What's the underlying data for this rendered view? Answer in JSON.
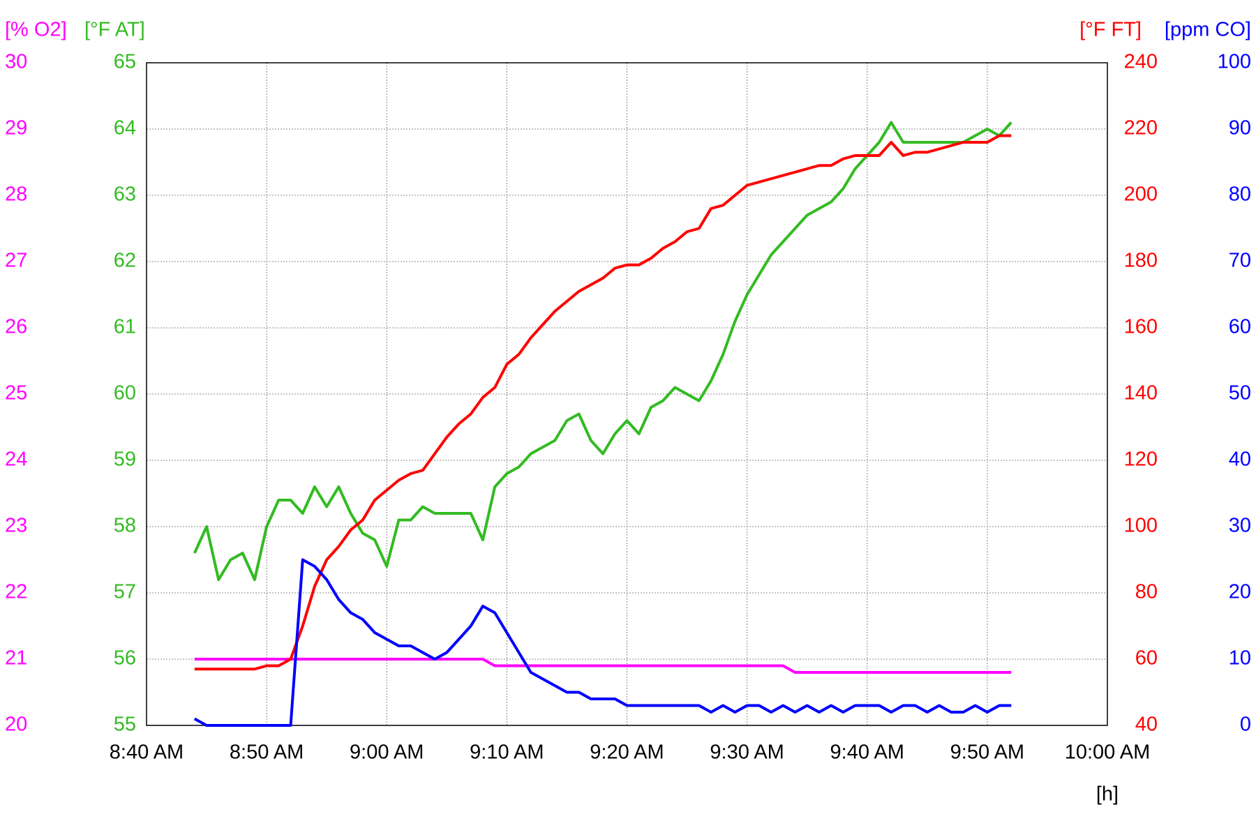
{
  "chart_data": {
    "type": "line",
    "grid": true,
    "xlabel": "[h]",
    "x": [
      524,
      525,
      526,
      527,
      528,
      529,
      530,
      531,
      532,
      533,
      534,
      535,
      536,
      537,
      538,
      539,
      540,
      541,
      542,
      543,
      544,
      545,
      546,
      547,
      548,
      549,
      550,
      551,
      552,
      553,
      554,
      555,
      556,
      557,
      558,
      559,
      560,
      561,
      562,
      563,
      564,
      565,
      566,
      567,
      568,
      569,
      570,
      571,
      572,
      573,
      574,
      575,
      576,
      577,
      578,
      579,
      580,
      581,
      582,
      583,
      584,
      585,
      586,
      587,
      588,
      589,
      590,
      591,
      592
    ],
    "xlim": [
      520,
      600
    ],
    "xticks": [
      {
        "value": 520,
        "label": "8:40 AM"
      },
      {
        "value": 530,
        "label": "8:50 AM"
      },
      {
        "value": 540,
        "label": "9:00 AM"
      },
      {
        "value": 550,
        "label": "9:10 AM"
      },
      {
        "value": 560,
        "label": "9:20 AM"
      },
      {
        "value": 570,
        "label": "9:30 AM"
      },
      {
        "value": 580,
        "label": "9:40 AM"
      },
      {
        "value": 590,
        "label": "9:50 AM"
      },
      {
        "value": 600,
        "label": "10:00 AM"
      }
    ],
    "axes": [
      {
        "label": "[% O2]",
        "side": "left",
        "color": "#ff00ff",
        "lim": [
          20,
          30
        ],
        "ticks": [
          20,
          21,
          22,
          23,
          24,
          25,
          26,
          27,
          28,
          29,
          30
        ]
      },
      {
        "label": "[°F AT]",
        "side": "left",
        "color": "#33bb22",
        "lim": [
          55,
          65
        ],
        "ticks": [
          55,
          56,
          57,
          58,
          59,
          60,
          61,
          62,
          63,
          64,
          65
        ]
      },
      {
        "label": "[°F FT]",
        "side": "right",
        "color": "#ff0000",
        "lim": [
          40,
          240
        ],
        "ticks": [
          40,
          60,
          80,
          100,
          120,
          140,
          160,
          180,
          200,
          220,
          240
        ]
      },
      {
        "label": "[ppm CO]",
        "side": "right",
        "color": "#0000ff",
        "lim": [
          0,
          100
        ],
        "ticks": [
          0,
          10,
          20,
          30,
          40,
          50,
          60,
          70,
          80,
          90,
          100
        ]
      }
    ],
    "series": [
      {
        "name": "O2",
        "axis": 0,
        "color": "#ff00ff",
        "values": [
          21,
          21,
          21,
          21,
          21,
          21,
          21,
          21,
          21,
          21,
          21,
          21,
          21,
          21,
          21,
          21,
          21,
          21,
          21,
          21,
          21,
          21,
          21,
          21,
          21,
          20.9,
          20.9,
          20.9,
          20.9,
          20.9,
          20.9,
          20.9,
          20.9,
          20.9,
          20.9,
          20.9,
          20.9,
          20.9,
          20.9,
          20.9,
          20.9,
          20.9,
          20.9,
          20.9,
          20.9,
          20.9,
          20.9,
          20.9,
          20.9,
          20.9,
          20.8,
          20.8,
          20.8,
          20.8,
          20.8,
          20.8,
          20.8,
          20.8,
          20.8,
          20.8,
          20.8,
          20.8,
          20.8,
          20.8,
          20.8,
          20.8,
          20.8,
          20.8,
          20.8
        ]
      },
      {
        "name": "AT",
        "axis": 1,
        "color": "#33bb22",
        "values": [
          57.6,
          58.0,
          57.2,
          57.5,
          57.6,
          57.2,
          58.0,
          58.4,
          58.4,
          58.2,
          58.6,
          58.3,
          58.6,
          58.2,
          57.9,
          57.8,
          57.4,
          58.1,
          58.1,
          58.3,
          58.2,
          58.2,
          58.2,
          58.2,
          57.8,
          58.6,
          58.8,
          58.9,
          59.1,
          59.2,
          59.3,
          59.6,
          59.7,
          59.3,
          59.1,
          59.4,
          59.6,
          59.4,
          59.8,
          59.9,
          60.1,
          60.0,
          59.9,
          60.2,
          60.6,
          61.1,
          61.5,
          61.8,
          62.1,
          62.3,
          62.5,
          62.7,
          62.8,
          62.9,
          63.1,
          63.4,
          63.6,
          63.8,
          64.1,
          63.8,
          63.8,
          63.8,
          63.8,
          63.8,
          63.8,
          63.9,
          64.0,
          63.9,
          64.1
        ]
      },
      {
        "name": "FT",
        "axis": 2,
        "color": "#ff0000",
        "values": [
          57,
          57,
          57,
          57,
          57,
          57,
          58,
          58,
          60,
          70,
          82,
          90,
          94,
          99,
          102,
          108,
          111,
          114,
          116,
          117,
          122,
          127,
          131,
          134,
          139,
          142,
          149,
          152,
          157,
          161,
          165,
          168,
          171,
          173,
          175,
          178,
          179,
          179,
          181,
          184,
          186,
          189,
          190,
          196,
          197,
          200,
          203,
          204,
          205,
          206,
          207,
          208,
          209,
          209,
          211,
          212,
          212,
          212,
          216,
          212,
          213,
          213,
          214,
          215,
          216,
          216,
          216,
          218,
          218
        ]
      },
      {
        "name": "CO",
        "axis": 3,
        "color": "#0000ff",
        "values": [
          1,
          0,
          0,
          0,
          0,
          0,
          0,
          0,
          0,
          25,
          24,
          22,
          19,
          17,
          16,
          14,
          13,
          12,
          12,
          11,
          10,
          11,
          13,
          15,
          18,
          17,
          14,
          11,
          8,
          7,
          6,
          5,
          5,
          4,
          4,
          4,
          3,
          3,
          3,
          3,
          3,
          3,
          3,
          2,
          3,
          2,
          3,
          3,
          2,
          3,
          2,
          3,
          2,
          3,
          2,
          3,
          3,
          3,
          2,
          3,
          3,
          2,
          3,
          2,
          2,
          3,
          2,
          3,
          3
        ]
      }
    ]
  }
}
